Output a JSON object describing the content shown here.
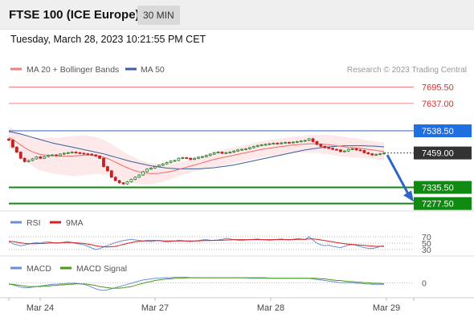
{
  "header": {
    "title": "FTSE 100 (ICE Europe)",
    "interval_label": "30 MIN"
  },
  "timestamp": "Tuesday, March 28, 2023 10:21:55 PM CET",
  "colors": {
    "resistance": "#f08080",
    "pivot": "#2f66c4",
    "current": "#333333",
    "support": "#118a11",
    "arrow": "#2f66c4",
    "candle_up": "#2a7a2a",
    "candle_down": "#c62020",
    "bollinger_fill": "#fde3e3",
    "ma20": "#f06a6a",
    "ma50": "#3a5f9a",
    "rsi": "#6b8ed6",
    "rsi_ma": "#d61f1f",
    "macd": "#6b8ed6",
    "macd_signal": "#4a9a1a"
  },
  "main_legend": {
    "ma20_label": "MA 20 + Bollinger Bands",
    "ma50_label": "MA 50",
    "copyright": "Research © 2023 Trading Central"
  },
  "rsi_legend": {
    "rsi_label": "RSI",
    "ma_label": "9MA"
  },
  "macd_legend": {
    "macd_label": "MACD",
    "signal_label": "MACD Signal"
  },
  "chart_data": {
    "type": "candlestick",
    "x_labels": [
      "Mar 24",
      "Mar 27",
      "Mar 28",
      "Mar 29"
    ],
    "y_range": [
      7265,
      7720
    ],
    "current_price": {
      "value": 7459.0,
      "label": "7459.00"
    },
    "levels": [
      {
        "role": "resistance",
        "value": 7695.5,
        "label": "7695.50"
      },
      {
        "role": "resistance",
        "value": 7637.0,
        "label": "7637.00"
      },
      {
        "role": "pivot",
        "value": 7538.5,
        "label": "7538.50"
      },
      {
        "role": "support",
        "value": 7335.5,
        "label": "7335.50"
      },
      {
        "role": "support",
        "value": 7277.5,
        "label": "7277.50"
      }
    ],
    "price_close": [
      7505,
      7480,
      7462,
      7440,
      7428,
      7432,
      7438,
      7445,
      7440,
      7446,
      7450,
      7452,
      7449,
      7455,
      7458,
      7460,
      7462,
      7460,
      7458,
      7456,
      7455,
      7452,
      7448,
      7440,
      7410,
      7395,
      7372,
      7360,
      7352,
      7348,
      7356,
      7364,
      7372,
      7380,
      7392,
      7401,
      7405,
      7410,
      7415,
      7420,
      7425,
      7430,
      7432,
      7440,
      7442,
      7440,
      7436,
      7440,
      7444,
      7446,
      7450,
      7455,
      7460,
      7462,
      7458,
      7460,
      7462,
      7466,
      7470,
      7472,
      7474,
      7478,
      7482,
      7486,
      7488,
      7490,
      7492,
      7494,
      7493,
      7495,
      7497,
      7496,
      7498,
      7500,
      7502,
      7504,
      7510,
      7500,
      7490,
      7483,
      7478,
      7476,
      7472,
      7470,
      7464,
      7466,
      7472,
      7474,
      7470,
      7468,
      7460,
      7456,
      7452,
      7454,
      7456,
      7459
    ],
    "ma20": [
      7515,
      7508,
      7498,
      7488,
      7478,
      7470,
      7463,
      7458,
      7454,
      7452,
      7451,
      7450,
      7449,
      7448,
      7448,
      7448,
      7448,
      7449,
      7450,
      7451,
      7451,
      7451,
      7450,
      7448,
      7444,
      7439,
      7433,
      7426,
      7419,
      7412,
      7406,
      7400,
      7395,
      7391,
      7388,
      7386,
      7385,
      7385,
      7386,
      7388,
      7390,
      7393,
      7396,
      7400,
      7404,
      7408,
      7412,
      7416,
      7420,
      7424,
      7428,
      7432,
      7436,
      7439,
      7442,
      7445,
      7448,
      7451,
      7454,
      7457,
      7460,
      7463,
      7466,
      7469,
      7472,
      7474,
      7476,
      7478,
      7480,
      7482,
      7484,
      7486,
      7488,
      7489,
      7490,
      7491,
      7492,
      7492,
      7492,
      7491,
      7490,
      7489,
      7487,
      7485,
      7483,
      7481,
      7479,
      7478,
      7477,
      7476,
      7474,
      7472,
      7470,
      7468,
      7466,
      7465
    ],
    "ma50": [
      7536,
      7533,
      7530,
      7527,
      7523,
      7519,
      7515,
      7511,
      7507,
      7503,
      7499,
      7495,
      7492,
      7489,
      7486,
      7483,
      7480,
      7477,
      7474,
      7471,
      7468,
      7465,
      7462,
      7459,
      7456,
      7452,
      7448,
      7444,
      7440,
      7436,
      7432,
      7428,
      7425,
      7422,
      7419,
      7416,
      7413,
      7411,
      7409,
      7407,
      7405,
      7404,
      7403,
      7402,
      7402,
      7402,
      7402,
      7402,
      7402,
      7403,
      7404,
      7405,
      7406,
      7408,
      7410,
      7412,
      7414,
      7416,
      7419,
      7422,
      7425,
      7428,
      7431,
      7434,
      7437,
      7440,
      7443,
      7446,
      7449,
      7452,
      7455,
      7458,
      7461,
      7464,
      7467,
      7470,
      7472,
      7474,
      7476,
      7478,
      7480,
      7481,
      7482,
      7483,
      7484,
      7485,
      7485,
      7485,
      7485,
      7485,
      7485,
      7484,
      7484,
      7483,
      7482,
      7481
    ],
    "bb_width": [
      38,
      38,
      40,
      42,
      45,
      48,
      52,
      55,
      58,
      60,
      62,
      64,
      65,
      66,
      68,
      70,
      72,
      72,
      72,
      72,
      70,
      68,
      66,
      64,
      62,
      60,
      58,
      56,
      54,
      52,
      50,
      48,
      46,
      44,
      42,
      40,
      38,
      36,
      34,
      32,
      30,
      28,
      26,
      25,
      24,
      24,
      24,
      24,
      24,
      25,
      25,
      26,
      26,
      27,
      27,
      28,
      28,
      28,
      28,
      28,
      28,
      28,
      28,
      29,
      29,
      30,
      30,
      30,
      30,
      30,
      30,
      30,
      30,
      30,
      30,
      31,
      31,
      32,
      32,
      33,
      34,
      35,
      36,
      36,
      36,
      36,
      35,
      35,
      34,
      34,
      33,
      33,
      32,
      32,
      32,
      32
    ],
    "rsi": {
      "levels": [
        70,
        50,
        30
      ],
      "level_labels": [
        "70",
        "50",
        "30"
      ],
      "range": [
        0,
        100
      ],
      "rsi": [
        55,
        48,
        45,
        42,
        44,
        47,
        50,
        52,
        50,
        53,
        54,
        52,
        50,
        51,
        53,
        55,
        52,
        49,
        47,
        45,
        40,
        35,
        30,
        33,
        38,
        43,
        47,
        52,
        55,
        58,
        60,
        62,
        60,
        58,
        57,
        56,
        55,
        57,
        58,
        56,
        54,
        55,
        57,
        59,
        58,
        56,
        55,
        57,
        58,
        60,
        61,
        59,
        58,
        60,
        62,
        65,
        63,
        61,
        59,
        58,
        60,
        61,
        62,
        63,
        61,
        60,
        59,
        60,
        62,
        63,
        61,
        60,
        62,
        64,
        63,
        61,
        70,
        60,
        50,
        45,
        42,
        44,
        40,
        38,
        36,
        40,
        44,
        46,
        43,
        40,
        36,
        34,
        33,
        36,
        40,
        42
      ],
      "rsi_ma": [
        56,
        55,
        53,
        51,
        49,
        48,
        48,
        48,
        49,
        49,
        50,
        51,
        51,
        51,
        52,
        52,
        52,
        51,
        50,
        49,
        47,
        45,
        42,
        40,
        39,
        38,
        39,
        40,
        43,
        46,
        49,
        52,
        54,
        56,
        57,
        58,
        58,
        58,
        58,
        57,
        57,
        57,
        57,
        57,
        57,
        57,
        57,
        57,
        57,
        58,
        58,
        58,
        59,
        59,
        59,
        60,
        60,
        61,
        61,
        61,
        61,
        61,
        61,
        61,
        61,
        61,
        61,
        61,
        61,
        61,
        61,
        61,
        61,
        62,
        62,
        62,
        63,
        63,
        62,
        60,
        58,
        56,
        54,
        52,
        50,
        48,
        47,
        46,
        45,
        44,
        43,
        42,
        41,
        40,
        40,
        40
      ]
    },
    "macd": {
      "zero_label": "0",
      "range": [
        -20,
        15
      ],
      "macd": [
        -2,
        -4,
        -6,
        -8,
        -9,
        -9,
        -8,
        -7,
        -6,
        -5,
        -4,
        -3,
        -3,
        -2,
        -2,
        -1,
        -1,
        -1,
        -2,
        -3,
        -5,
        -8,
        -11,
        -13,
        -14,
        -13,
        -11,
        -9,
        -7,
        -5,
        -3,
        -1,
        1,
        3,
        5,
        6,
        7,
        8,
        8,
        9,
        9,
        9,
        10,
        10,
        10,
        10,
        9,
        9,
        9,
        9,
        9,
        9,
        9,
        9,
        9,
        9,
        9,
        9,
        9,
        9,
        9,
        8,
        8,
        8,
        8,
        8,
        8,
        8,
        8,
        8,
        8,
        8,
        8,
        8,
        8,
        8,
        8,
        7,
        6,
        5,
        4,
        3,
        2,
        1,
        0,
        0,
        0,
        0,
        -1,
        -1,
        -2,
        -2,
        -3,
        -3,
        -3,
        -3
      ],
      "signal": [
        -3,
        -3,
        -4,
        -5,
        -6,
        -7,
        -7,
        -7,
        -7,
        -6,
        -6,
        -5,
        -5,
        -4,
        -4,
        -3,
        -3,
        -2,
        -2,
        -2,
        -3,
        -4,
        -5,
        -7,
        -8,
        -9,
        -10,
        -10,
        -10,
        -9,
        -8,
        -7,
        -5,
        -3,
        -1,
        1,
        2,
        4,
        5,
        6,
        7,
        7,
        8,
        8,
        8,
        9,
        9,
        9,
        9,
        9,
        9,
        9,
        9,
        9,
        9,
        9,
        9,
        9,
        9,
        9,
        9,
        9,
        9,
        9,
        9,
        9,
        8,
        8,
        8,
        8,
        8,
        8,
        8,
        8,
        8,
        8,
        8,
        8,
        8,
        7,
        7,
        6,
        5,
        4,
        4,
        3,
        2,
        2,
        1,
        1,
        0,
        0,
        -1,
        -1,
        -1,
        -2
      ]
    }
  }
}
